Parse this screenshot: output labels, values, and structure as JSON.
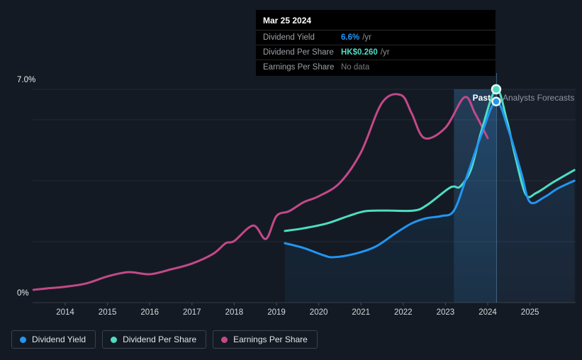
{
  "tooltip": {
    "date": "Mar 25 2024",
    "rows": [
      {
        "label": "Dividend Yield",
        "value": "6.6%",
        "suffix": "/yr",
        "color": "#2196f3"
      },
      {
        "label": "Dividend Per Share",
        "value": "HK$0.260",
        "suffix": "/yr",
        "color": "#4fdcc3"
      },
      {
        "label": "Earnings Per Share",
        "value": "No data",
        "suffix": "",
        "color": "#77797d"
      }
    ]
  },
  "labels": {
    "past": "Past",
    "forecast": "Analysts Forecasts"
  },
  "legend": {
    "items": [
      {
        "label": "Dividend Yield",
        "color": "#2196f3"
      },
      {
        "label": "Dividend Per Share",
        "color": "#4fdcc3"
      },
      {
        "label": "Earnings Per Share",
        "color": "#c2498a"
      }
    ]
  },
  "colors": {
    "background": "#141a23",
    "gridline": "rgba(255,255,255,0.07)",
    "baseline": "rgba(255,255,255,0.15)",
    "tick": "#454d5a",
    "axis_text": "#d6d9dd",
    "y_label_text": "#eceef0",
    "divider_line": "#4f7596",
    "band_fill_top": "rgba(70,142,208,0.30)",
    "band_fill_bottom": "rgba(70,142,208,0.14)",
    "forecast_fill": "rgba(150,185,225,0.04)",
    "area_fill_top": "rgba(33,150,243,0.15)",
    "area_fill_bottom": "rgba(33,150,243,0.06)"
  },
  "chart_data": {
    "type": "line",
    "y_axis": {
      "unit": "%",
      "range": [
        0,
        7.4
      ],
      "gridlines": [
        {
          "value": 0,
          "label": "0%"
        },
        {
          "value": 2,
          "label": ""
        },
        {
          "value": 4,
          "label": ""
        },
        {
          "value": 6,
          "label": ""
        },
        {
          "value": 7,
          "label": "7.0%"
        }
      ]
    },
    "x_axis": {
      "range": [
        2013.1,
        2026.2
      ],
      "ticks": [
        2014,
        2015,
        2016,
        2017,
        2018,
        2019,
        2020,
        2021,
        2022,
        2023,
        2024,
        2025
      ]
    },
    "divider_x": 2024.2,
    "band": {
      "start": 2023.2,
      "end": 2024.2
    },
    "series": [
      {
        "name": "Earnings Per Share",
        "color": "#c2498a",
        "area": false,
        "points": [
          [
            2013.25,
            0.42
          ],
          [
            2013.6,
            0.47
          ],
          [
            2014,
            0.52
          ],
          [
            2014.5,
            0.63
          ],
          [
            2015,
            0.86
          ],
          [
            2015.5,
            1.0
          ],
          [
            2016,
            0.93
          ],
          [
            2016.5,
            1.09
          ],
          [
            2017,
            1.28
          ],
          [
            2017.5,
            1.6
          ],
          [
            2017.8,
            1.95
          ],
          [
            2018,
            2.02
          ],
          [
            2018.45,
            2.53
          ],
          [
            2018.75,
            2.09
          ],
          [
            2019,
            2.84
          ],
          [
            2019.3,
            3.0
          ],
          [
            2019.65,
            3.3
          ],
          [
            2020,
            3.49
          ],
          [
            2020.5,
            3.93
          ],
          [
            2021,
            4.93
          ],
          [
            2021.5,
            6.56
          ],
          [
            2021.95,
            6.81
          ],
          [
            2022.2,
            6.21
          ],
          [
            2022.5,
            5.4
          ],
          [
            2023,
            5.74
          ],
          [
            2023.45,
            6.74
          ],
          [
            2023.7,
            6.21
          ],
          [
            2024,
            5.4
          ]
        ]
      },
      {
        "name": "Dividend Per Share",
        "color": "#4fdcc3",
        "area": false,
        "points": [
          [
            2019.2,
            2.35
          ],
          [
            2019.65,
            2.44
          ],
          [
            2020.2,
            2.6
          ],
          [
            2020.7,
            2.84
          ],
          [
            2021.1,
            3.0
          ],
          [
            2021.6,
            3.02
          ],
          [
            2022.25,
            3.02
          ],
          [
            2022.55,
            3.19
          ],
          [
            2023.05,
            3.72
          ],
          [
            2023.2,
            3.81
          ],
          [
            2023.35,
            3.81
          ],
          [
            2023.6,
            4.35
          ],
          [
            2023.85,
            5.63
          ],
          [
            2024.2,
            7.0
          ],
          [
            2024.45,
            6.0
          ],
          [
            2024.65,
            4.81
          ],
          [
            2024.9,
            3.55
          ],
          [
            2025.15,
            3.6
          ],
          [
            2025.55,
            3.95
          ],
          [
            2026.05,
            4.35
          ]
        ]
      },
      {
        "name": "Dividend Yield",
        "color": "#2196f3",
        "area": true,
        "points": [
          [
            2019.2,
            1.95
          ],
          [
            2019.65,
            1.79
          ],
          [
            2020.1,
            1.56
          ],
          [
            2020.35,
            1.49
          ],
          [
            2020.85,
            1.6
          ],
          [
            2021.35,
            1.84
          ],
          [
            2021.8,
            2.26
          ],
          [
            2022.2,
            2.6
          ],
          [
            2022.55,
            2.77
          ],
          [
            2022.9,
            2.84
          ],
          [
            2023.2,
            3.02
          ],
          [
            2023.5,
            4.12
          ],
          [
            2023.85,
            5.51
          ],
          [
            2024.2,
            6.6
          ],
          [
            2024.5,
            5.63
          ],
          [
            2024.8,
            4.23
          ],
          [
            2025.0,
            3.3
          ],
          [
            2025.35,
            3.47
          ],
          [
            2025.65,
            3.74
          ],
          [
            2026.05,
            4.0
          ]
        ]
      }
    ],
    "markers": [
      {
        "x": 2024.2,
        "y": 7.0,
        "color": "#4fdcc3",
        "r": 6
      },
      {
        "x": 2024.2,
        "y": 6.6,
        "color": "#2196f3",
        "r": 5.5
      }
    ]
  }
}
